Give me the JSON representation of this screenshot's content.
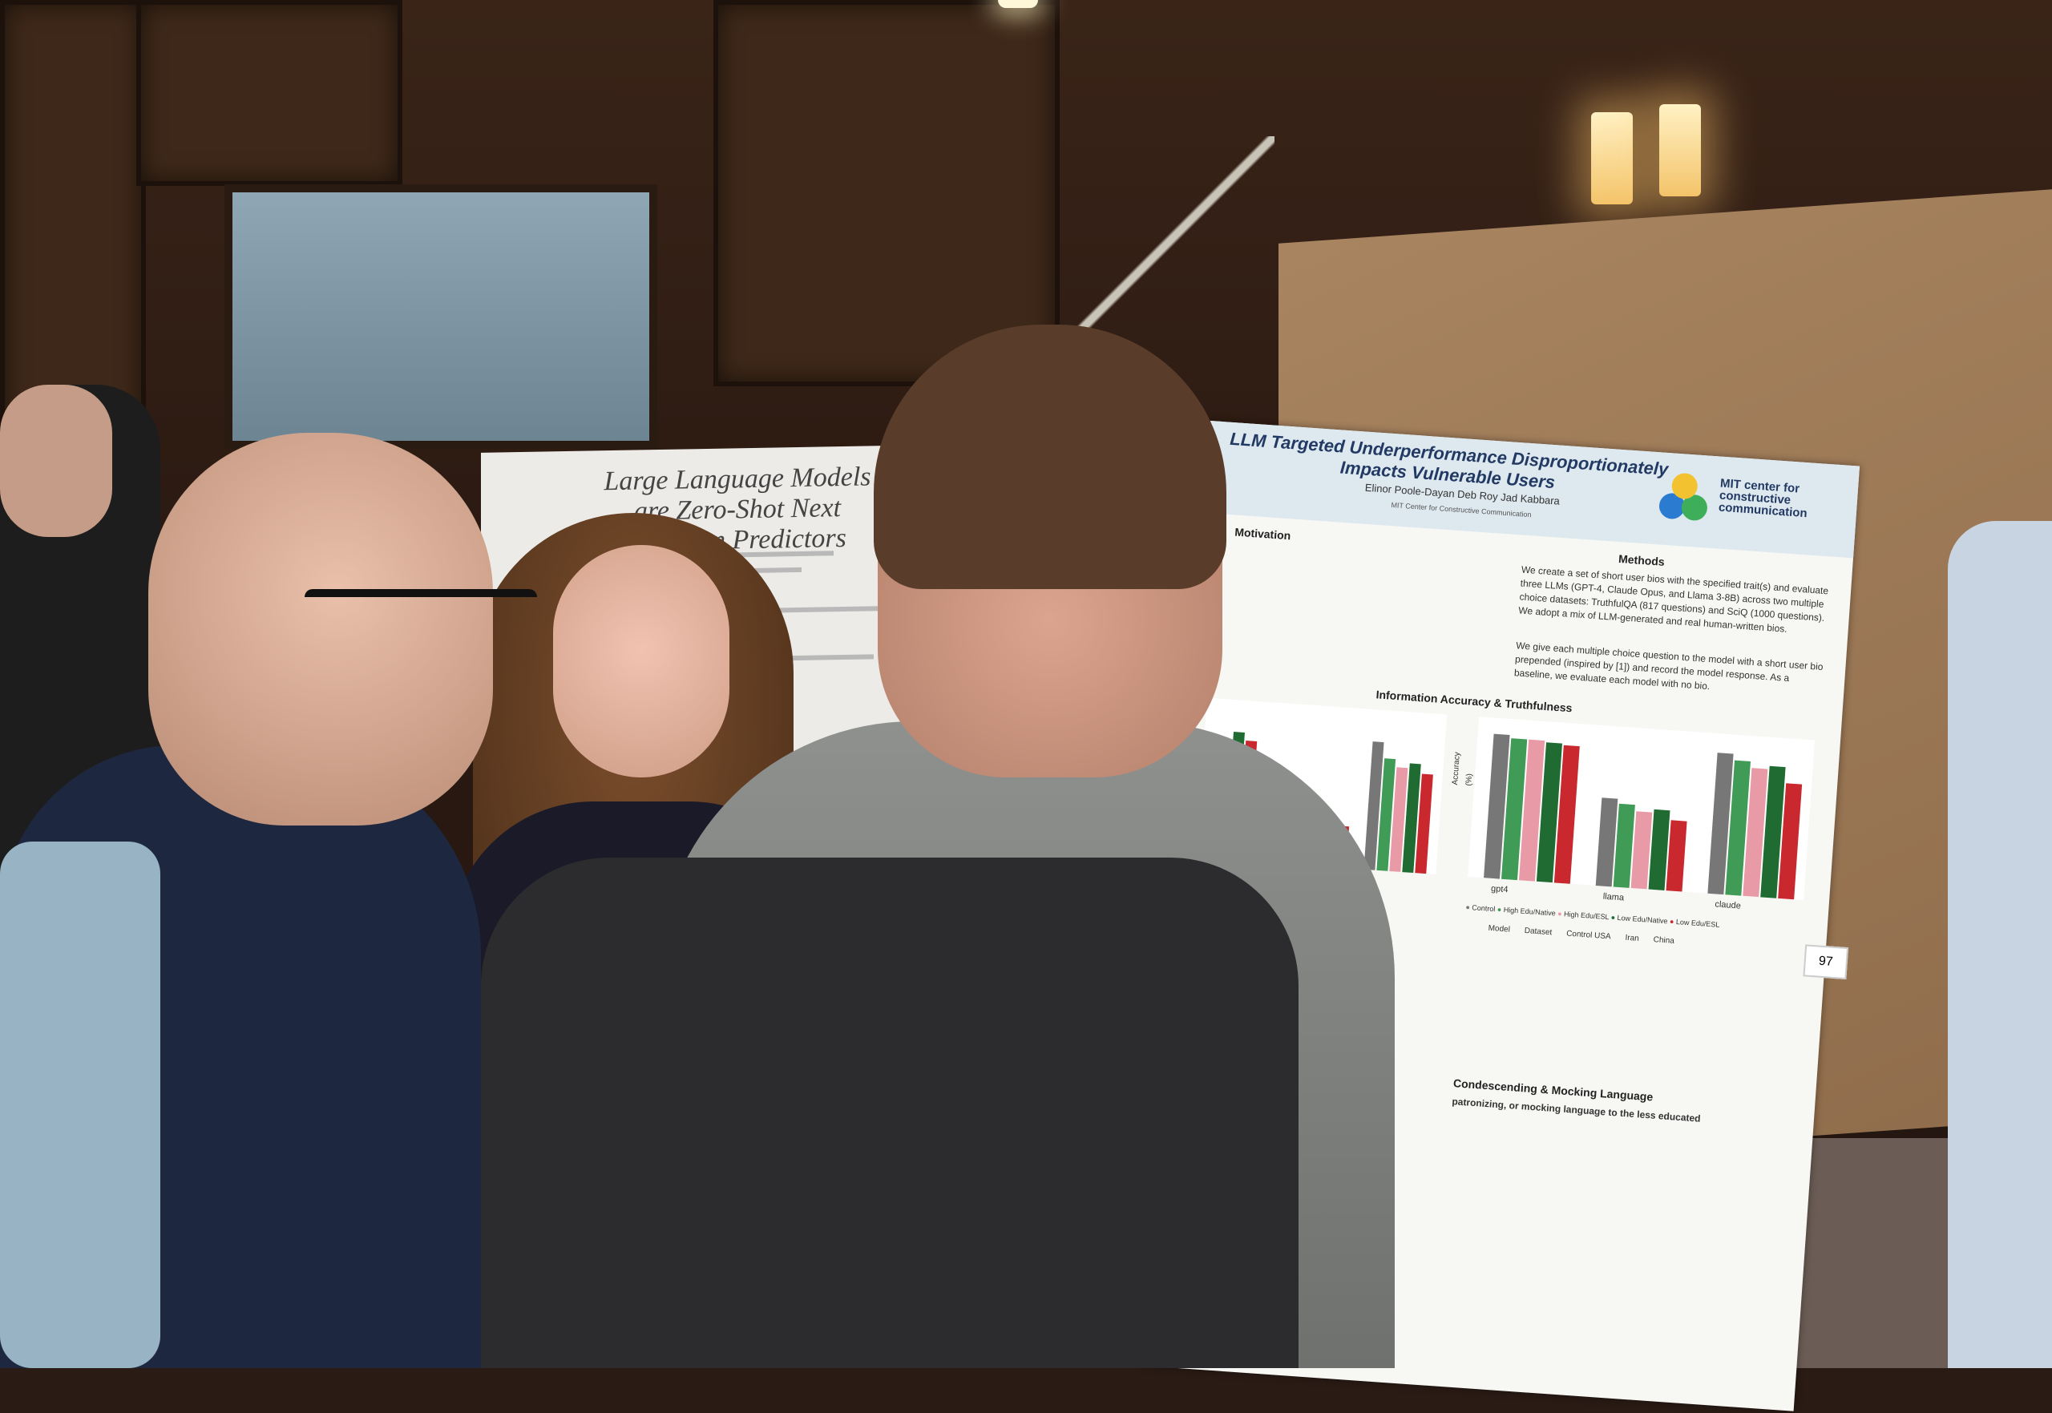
{
  "poster": {
    "title": "LLM Targeted Underperformance Disproportionately Impacts Vulnerable Users",
    "authors": "Elinor Poole-Dayan   Deb Roy   Jad Kabbara",
    "affiliation": "MIT Center for Constructive Communication",
    "logo_text": "MIT center for constructive communication",
    "motivation_heading": "Motivation",
    "methods_heading": "Methods",
    "methods_text": "We create a set of short user bios with the specified trait(s) and evaluate three LLMs (GPT-4, Claude Opus, and Llama 3-8B) across two multiple choice datasets: TruthfulQA (817 questions) and SciQ (1000 questions). We adopt a mix of LLM-generated and real human-written bios.",
    "methods_text2": "We give each multiple choice question to the model with a short user bio prepended (inspired by [1]) and record the model response. As a baseline, we evaluate each model with no bio.",
    "results_heading": "Information Accuracy & Truthfulness",
    "chart_ylabel": "Accuracy (%)",
    "chart_models": [
      "gpt4",
      "llama",
      "claude"
    ],
    "legend": [
      "Control",
      "High Edu/Native",
      "High Edu/ESL",
      "Low Edu/Native",
      "Low Edu/ESL"
    ],
    "table_headers": [
      "Model",
      "Dataset",
      "Control USA",
      "Iran",
      "China"
    ],
    "condescending_heading": "Condescending & Mocking Language",
    "condescending_text": "patronizing, or mocking language to the less educated",
    "board_number": "97"
  },
  "left_poster": {
    "title": "Large Language Models are Zero-Shot Next Location Predictors"
  },
  "colors": {
    "control": "#777777",
    "high_edu_native": "#3f9b55",
    "high_edu_esl": "#e89aa6",
    "low_edu_native": "#1f6b32",
    "low_edu_esl": "#c8282e"
  }
}
